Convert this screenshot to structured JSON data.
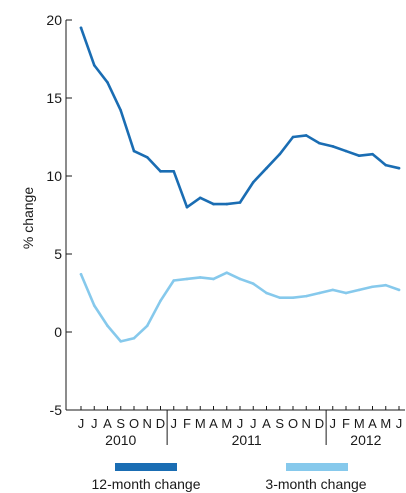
{
  "chart_data": {
    "type": "line",
    "ylabel": "% change",
    "ylim": [
      -5,
      20
    ],
    "y_ticks": [
      "20",
      "15",
      "10",
      "5",
      "0",
      "-5"
    ],
    "months": [
      "J",
      "J",
      "A",
      "S",
      "O",
      "N",
      "D",
      "J",
      "F",
      "M",
      "A",
      "M",
      "J",
      "J",
      "A",
      "S",
      "O",
      "N",
      "D",
      "J",
      "F",
      "M",
      "A",
      "M",
      "J"
    ],
    "years": [
      {
        "label": "2010",
        "start_index": 0,
        "end_index": 6
      },
      {
        "label": "2011",
        "start_index": 7,
        "end_index": 18
      },
      {
        "label": "2012",
        "start_index": 19,
        "end_index": 24
      }
    ],
    "year_dividers_after_index": [
      6,
      18
    ],
    "series": [
      {
        "name": "12-month change",
        "color": "#1a6db3",
        "values": [
          19.5,
          17.1,
          16.0,
          14.2,
          11.6,
          11.2,
          10.3,
          10.3,
          8.0,
          8.6,
          8.2,
          8.2,
          8.3,
          9.6,
          10.5,
          11.4,
          12.5,
          12.6,
          12.1,
          11.9,
          11.6,
          11.3,
          11.4,
          10.7,
          10.5
        ]
      },
      {
        "name": "3-month change",
        "color": "#86c9ec",
        "values": [
          3.7,
          1.7,
          0.4,
          -0.6,
          -0.4,
          0.4,
          2.0,
          3.3,
          3.4,
          3.5,
          3.4,
          3.8,
          3.4,
          3.1,
          2.5,
          2.2,
          2.2,
          2.3,
          2.5,
          2.7,
          2.5,
          2.7,
          2.9,
          3.0,
          2.7
        ]
      }
    ],
    "grid": false,
    "legend_position": "bottom"
  }
}
